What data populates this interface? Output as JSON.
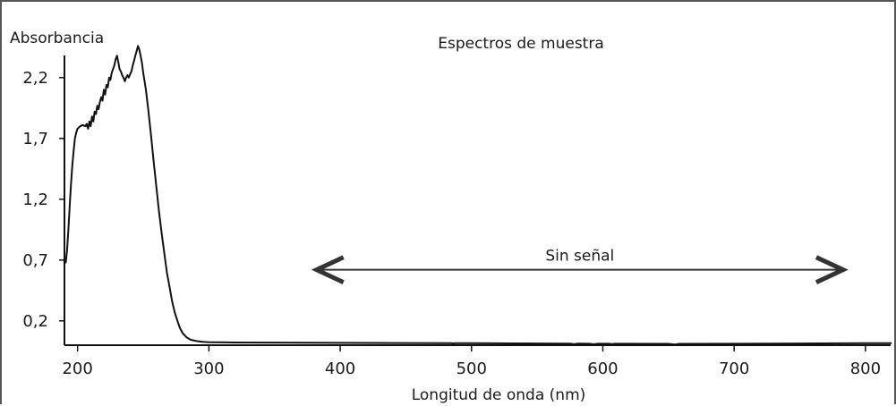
{
  "chart_data": {
    "type": "line",
    "title": "Espectros de muestra",
    "xlabel": "Longitud de onda (nm)",
    "ylabel": "Absorbancia",
    "xlim": [
      190,
      820
    ],
    "ylim": [
      0,
      2.5
    ],
    "x_ticks": [
      "200",
      "300",
      "400",
      "500",
      "600",
      "700",
      "800"
    ],
    "y_ticks": [
      "0,2",
      "0,7",
      "1,2",
      "1,7",
      "2,2"
    ],
    "grid": false,
    "series": [
      {
        "color": "#111111",
        "points": [
          [
            190,
            0.72
          ],
          [
            191,
            0.68
          ],
          [
            192,
            0.78
          ],
          [
            193,
            0.95
          ],
          [
            194,
            1.15
          ],
          [
            195,
            1.32
          ],
          [
            196,
            1.48
          ],
          [
            197,
            1.6
          ],
          [
            198,
            1.7
          ],
          [
            199,
            1.75
          ],
          [
            200,
            1.78
          ],
          [
            202,
            1.8
          ],
          [
            204,
            1.81
          ],
          [
            206,
            1.8
          ],
          [
            207,
            1.82
          ],
          [
            208,
            1.78
          ],
          [
            209,
            1.84
          ],
          [
            210,
            1.8
          ],
          [
            211,
            1.88
          ],
          [
            212,
            1.84
          ],
          [
            213,
            1.92
          ],
          [
            214,
            1.9
          ],
          [
            215,
            1.97
          ],
          [
            216,
            1.94
          ],
          [
            217,
            2.0
          ],
          [
            218,
            2.04
          ],
          [
            219,
            2.01
          ],
          [
            220,
            2.1
          ],
          [
            221,
            2.06
          ],
          [
            222,
            2.14
          ],
          [
            223,
            2.12
          ],
          [
            224,
            2.2
          ],
          [
            225,
            2.18
          ],
          [
            226,
            2.24
          ],
          [
            227,
            2.27
          ],
          [
            228,
            2.3
          ],
          [
            229,
            2.35
          ],
          [
            230,
            2.38
          ],
          [
            231,
            2.33
          ],
          [
            232,
            2.27
          ],
          [
            233,
            2.25
          ],
          [
            234,
            2.22
          ],
          [
            235,
            2.2
          ],
          [
            236,
            2.17
          ],
          [
            237,
            2.2
          ],
          [
            238,
            2.22
          ],
          [
            239,
            2.2
          ],
          [
            240,
            2.23
          ],
          [
            241,
            2.25
          ],
          [
            242,
            2.3
          ],
          [
            243,
            2.34
          ],
          [
            244,
            2.38
          ],
          [
            245,
            2.42
          ],
          [
            246,
            2.46
          ],
          [
            247,
            2.43
          ],
          [
            248,
            2.38
          ],
          [
            249,
            2.32
          ],
          [
            250,
            2.24
          ],
          [
            252,
            2.1
          ],
          [
            254,
            1.92
          ],
          [
            256,
            1.72
          ],
          [
            258,
            1.5
          ],
          [
            260,
            1.3
          ],
          [
            262,
            1.1
          ],
          [
            264,
            0.92
          ],
          [
            266,
            0.76
          ],
          [
            268,
            0.6
          ],
          [
            270,
            0.48
          ],
          [
            272,
            0.36
          ],
          [
            274,
            0.27
          ],
          [
            276,
            0.2
          ],
          [
            278,
            0.14
          ],
          [
            280,
            0.1
          ],
          [
            283,
            0.065
          ],
          [
            286,
            0.045
          ],
          [
            290,
            0.035
          ],
          [
            295,
            0.028
          ],
          [
            300,
            0.025
          ],
          [
            320,
            0.022
          ],
          [
            350,
            0.021
          ],
          [
            400,
            0.019
          ],
          [
            450,
            0.018
          ],
          [
            485,
            0.017
          ],
          [
            486,
            0.012
          ],
          [
            487,
            0.017
          ],
          [
            500,
            0.016
          ],
          [
            550,
            0.014
          ],
          [
            575,
            0.013
          ],
          [
            578,
            0.008
          ],
          [
            581,
            0.013
          ],
          [
            590,
            0.012
          ],
          [
            593,
            0.007
          ],
          [
            596,
            0.012
          ],
          [
            605,
            0.012
          ],
          [
            607,
            0.008
          ],
          [
            609,
            0.012
          ],
          [
            650,
            0.011
          ],
          [
            655,
            0.006
          ],
          [
            658,
            0.011
          ],
          [
            700,
            0.012
          ],
          [
            750,
            0.014
          ],
          [
            800,
            0.016
          ],
          [
            820,
            0.016
          ]
        ]
      }
    ],
    "annotations": [
      {
        "text": "Sin señal",
        "x_start": 382,
        "x_end": 783,
        "y": 0.62,
        "style": "double-arrow"
      }
    ]
  }
}
